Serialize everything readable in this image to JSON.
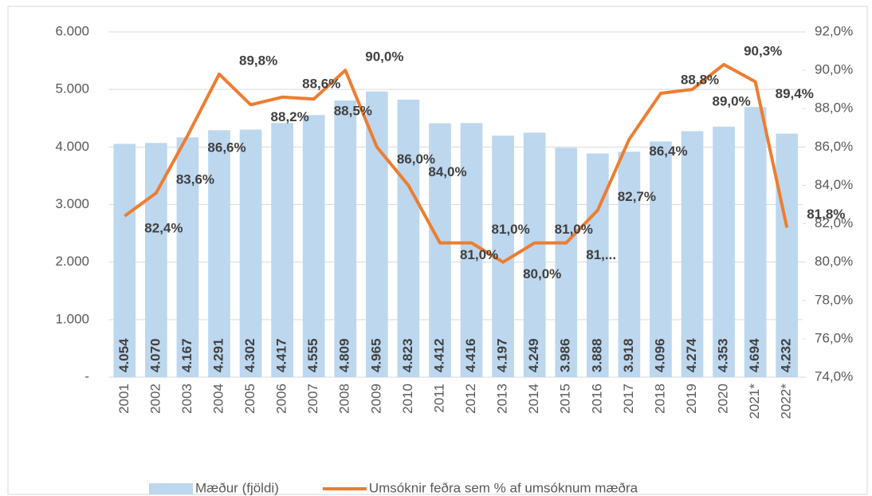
{
  "chart_data": {
    "type": "bar-line",
    "categories": [
      "2001",
      "2002",
      "2003",
      "2004",
      "2005",
      "2006",
      "2007",
      "2008",
      "2009",
      "2010",
      "2011",
      "2012",
      "2013",
      "2014",
      "2015",
      "2016",
      "2017",
      "2018",
      "2019",
      "2020",
      "2021*",
      "2022*"
    ],
    "series": [
      {
        "name": "Mæður (fjöldi)",
        "type": "bar",
        "color": "#bdd7ee",
        "values": [
          4054,
          4070,
          4167,
          4291,
          4302,
          4417,
          4555,
          4809,
          4965,
          4823,
          4412,
          4416,
          4197,
          4249,
          3986,
          3888,
          3918,
          4096,
          4274,
          4353,
          4694,
          4232
        ],
        "value_labels": [
          "4.054",
          "4.070",
          "4.167",
          "4.291",
          "4.302",
          "4.417",
          "4.555",
          "4.809",
          "4.965",
          "4.823",
          "4.412",
          "4.416",
          "4.197",
          "4.249",
          "3.986",
          "3.888",
          "3.918",
          "4.096",
          "4.274",
          "4.353",
          "4.694",
          "4.232"
        ]
      },
      {
        "name": "Umsóknir feðra sem  % af umsóknum mæðra",
        "type": "line",
        "axis": "y2",
        "color": "#ed7d31",
        "values": [
          82.4,
          83.6,
          86.6,
          89.8,
          88.2,
          88.6,
          88.5,
          90.0,
          86.0,
          84.0,
          81.0,
          81.0,
          80.0,
          81.0,
          81.0,
          82.7,
          86.4,
          88.8,
          89.0,
          90.3,
          89.4,
          81.8
        ],
        "value_labels": [
          "82,4%",
          "83,6%",
          "86,6%",
          "89,8%",
          "88,2%",
          "88,6%",
          "88,5%",
          "90,0%",
          "86,0%",
          "84,0%",
          "81,0%",
          "81,0%",
          "80,0%",
          "81,0%",
          "81,...",
          "82,7%",
          "86,4%",
          "88,8%",
          "89,0%",
          "90,3%",
          "89,4%",
          "81,8%"
        ]
      }
    ],
    "ylim": [
      0,
      6000
    ],
    "yticks": [
      {
        "value": 0,
        "label": "-"
      },
      {
        "value": 1000,
        "label": "1.000"
      },
      {
        "value": 2000,
        "label": "2.000"
      },
      {
        "value": 3000,
        "label": "3.000"
      },
      {
        "value": 4000,
        "label": "4.000"
      },
      {
        "value": 5000,
        "label": "5.000"
      },
      {
        "value": 6000,
        "label": "6.000"
      }
    ],
    "y2lim": [
      74,
      92
    ],
    "y2ticks": [
      {
        "value": 74,
        "label": "74,0%"
      },
      {
        "value": 76,
        "label": "76,0%"
      },
      {
        "value": 78,
        "label": "78,0%"
      },
      {
        "value": 80,
        "label": "80,0%"
      },
      {
        "value": 82,
        "label": "82,0%"
      },
      {
        "value": 84,
        "label": "84,0%"
      },
      {
        "value": 86,
        "label": "86,0%"
      },
      {
        "value": 88,
        "label": "88,0%"
      },
      {
        "value": 90,
        "label": "90,0%"
      },
      {
        "value": 92,
        "label": "92,0%"
      }
    ],
    "grid": true,
    "legend": "bottom"
  }
}
